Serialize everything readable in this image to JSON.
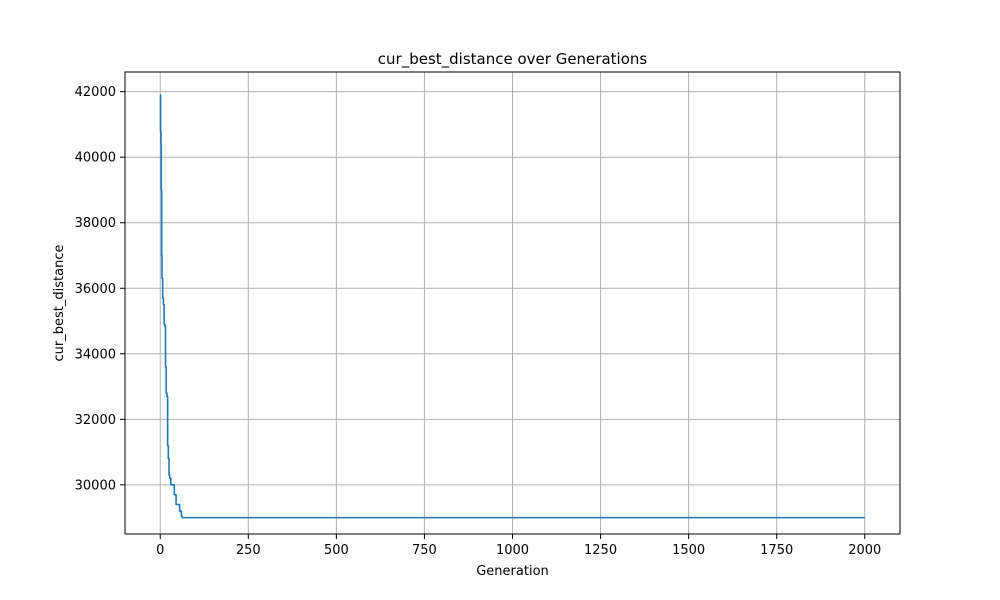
{
  "chart_data": {
    "type": "line",
    "title": "cur_best_distance over Generations",
    "xlabel": "Generation",
    "ylabel": "cur_best_distance",
    "xlim": [
      -100,
      2100
    ],
    "ylim": [
      28500,
      42600
    ],
    "x_ticks": [
      0,
      250,
      500,
      750,
      1000,
      1250,
      1500,
      1750,
      2000
    ],
    "x_tick_labels": [
      "0",
      "250",
      "500",
      "750",
      "1000",
      "1250",
      "1500",
      "1750",
      "2000"
    ],
    "y_ticks": [
      30000,
      32000,
      34000,
      36000,
      38000,
      40000,
      42000
    ],
    "y_tick_labels": [
      "30000",
      "32000",
      "34000",
      "36000",
      "38000",
      "40000",
      "42000"
    ],
    "grid": true,
    "series": [
      {
        "color": "#1f77b4",
        "x": [
          0,
          1,
          1,
          2,
          2,
          3,
          3,
          4,
          4,
          5,
          5,
          7,
          7,
          9,
          9,
          11,
          11,
          13,
          13,
          15,
          15,
          17,
          17,
          19,
          19,
          21,
          21,
          23,
          23,
          25,
          25,
          27,
          27,
          30,
          30,
          40,
          40,
          45,
          45,
          55,
          55,
          60,
          60,
          62,
          62,
          2000
        ],
        "y": [
          41900,
          41900,
          40800,
          40800,
          40400,
          40400,
          39000,
          39000,
          37000,
          37000,
          36300,
          36300,
          35700,
          35700,
          35500,
          35500,
          34900,
          34900,
          34850,
          34850,
          33600,
          33600,
          32800,
          32800,
          32700,
          32700,
          31200,
          31200,
          30800,
          30800,
          30300,
          30300,
          30200,
          30200,
          30000,
          30000,
          29700,
          29700,
          29400,
          29400,
          29200,
          29200,
          29050,
          29050,
          29000,
          29000
        ]
      }
    ]
  },
  "colors": {
    "line": "#1f77b4",
    "grid": "#b0b0b0",
    "axes": "#000000",
    "background": "#ffffff"
  }
}
